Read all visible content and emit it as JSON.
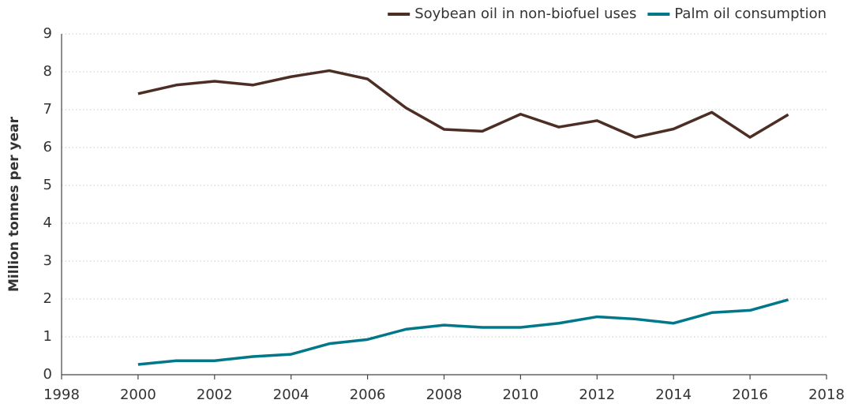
{
  "chart_data": {
    "type": "line",
    "y_label": "Million tonnes per year",
    "x": [
      2000,
      2001,
      2002,
      2003,
      2004,
      2005,
      2006,
      2007,
      2008,
      2009,
      2010,
      2011,
      2012,
      2013,
      2014,
      2015,
      2016,
      2017
    ],
    "series": [
      {
        "name": "Soybean oil in non-biofuel uses",
        "color": "#4d2e25",
        "values": [
          7.42,
          7.65,
          7.75,
          7.65,
          7.87,
          8.03,
          7.81,
          7.05,
          6.48,
          6.43,
          6.88,
          6.54,
          6.71,
          6.27,
          6.49,
          6.93,
          6.27,
          6.87
        ]
      },
      {
        "name": "Palm oil consumption",
        "color": "#00788a",
        "values": [
          0.27,
          0.37,
          0.37,
          0.48,
          0.54,
          0.82,
          0.93,
          1.2,
          1.31,
          1.25,
          1.25,
          1.36,
          1.53,
          1.47,
          1.36,
          1.64,
          1.7,
          1.98
        ]
      }
    ],
    "xlim": [
      1998,
      2018
    ],
    "xticks": [
      1998,
      2000,
      2002,
      2004,
      2006,
      2008,
      2010,
      2012,
      2014,
      2016,
      2018
    ],
    "ylim": [
      0,
      9
    ],
    "yticks": [
      0,
      1,
      2,
      3,
      4,
      5,
      6,
      7,
      8,
      9
    ],
    "grid": true,
    "legend": "top-right"
  }
}
